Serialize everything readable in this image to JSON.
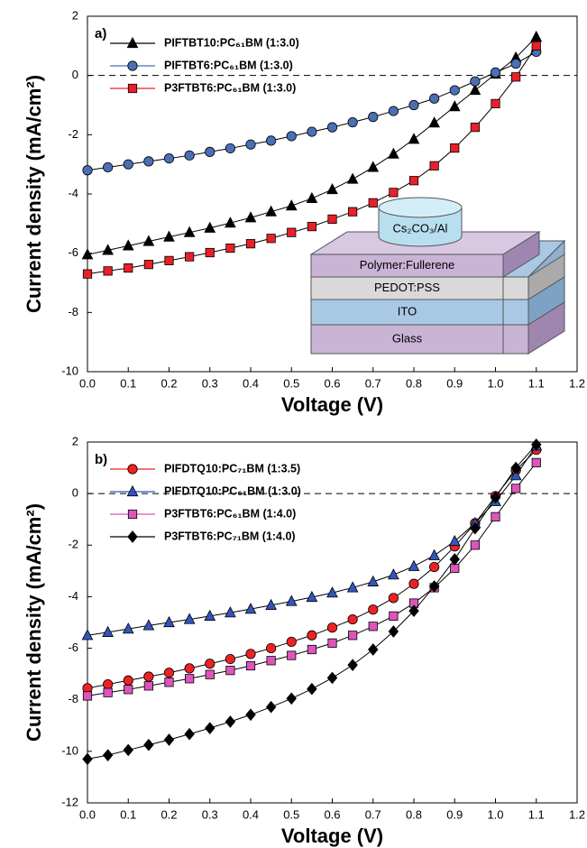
{
  "chart_data": [
    {
      "type": "scatter",
      "panel_label": "a)",
      "x_label": "Voltage (V)",
      "y_label": "Current density (mA/cm²)",
      "x": [
        0,
        0.05,
        0.1,
        0.15,
        0.2,
        0.25,
        0.3,
        0.35,
        0.4,
        0.45,
        0.5,
        0.55,
        0.6,
        0.65,
        0.7,
        0.75,
        0.8,
        0.85,
        0.9,
        0.95,
        1.0,
        1.05,
        1.1
      ],
      "series": [
        {
          "name": "PIFTBT10:PC₆₁BM (1:3.0)",
          "color": "#000000",
          "marker": "triangle",
          "values": [
            -6.05,
            -5.9,
            -5.75,
            -5.6,
            -5.45,
            -5.3,
            -5.15,
            -4.98,
            -4.8,
            -4.6,
            -4.4,
            -4.15,
            -3.85,
            -3.5,
            -3.1,
            -2.65,
            -2.15,
            -1.6,
            -1.05,
            -0.5,
            0.05,
            0.6,
            1.3
          ]
        },
        {
          "name": "PIFTBT6:PC₆₁BM (1:3.0)",
          "color": "#4a6fb5",
          "marker": "circle",
          "values": [
            -3.2,
            -3.1,
            -3.0,
            -2.9,
            -2.8,
            -2.7,
            -2.58,
            -2.46,
            -2.33,
            -2.2,
            -2.05,
            -1.9,
            -1.75,
            -1.58,
            -1.4,
            -1.2,
            -1.0,
            -0.78,
            -0.5,
            -0.2,
            0.1,
            0.4,
            0.8
          ]
        },
        {
          "name": "P3FTBT6:PC₆₁BM (1:3.0)",
          "color": "#e8202a",
          "marker": "square",
          "values": [
            -6.7,
            -6.6,
            -6.5,
            -6.38,
            -6.25,
            -6.12,
            -5.98,
            -5.83,
            -5.68,
            -5.5,
            -5.3,
            -5.1,
            -4.85,
            -4.6,
            -4.3,
            -3.95,
            -3.55,
            -3.05,
            -2.45,
            -1.75,
            -0.95,
            -0.05,
            1.0
          ]
        }
      ],
      "xlim": [
        0,
        1.2
      ],
      "xticks": [
        {
          "value": 0,
          "label": "0.0"
        },
        0.1,
        0.2,
        0.3,
        0.4,
        0.5,
        0.6,
        0.7,
        0.8,
        0.9,
        {
          "value": 1,
          "label": "1.0"
        },
        1.1,
        1.2
      ],
      "ylim": [
        -10,
        2
      ],
      "yticks": [
        -10,
        -8,
        -6,
        -4,
        -2,
        0,
        2
      ],
      "hline": 0,
      "legend": "upper left",
      "inset_top": "Cs₂CO₃/Al",
      "inset_layers": [
        "Polymer:Fullerene",
        "PEDOT:PSS",
        "ITO",
        "Glass"
      ]
    },
    {
      "type": "scatter",
      "panel_label": "b)",
      "x_label": "Voltage (V)",
      "y_label": "Current density (mA/cm²)",
      "x": [
        0,
        0.05,
        0.1,
        0.15,
        0.2,
        0.25,
        0.3,
        0.35,
        0.4,
        0.45,
        0.5,
        0.55,
        0.6,
        0.65,
        0.7,
        0.75,
        0.8,
        0.85,
        0.9,
        0.95,
        1.0,
        1.05,
        1.1
      ],
      "series": [
        {
          "name": "PIFDTQ10:PC₇₁BM (1:3.5)",
          "color": "#ee2222",
          "marker": "circle",
          "values": [
            -7.55,
            -7.4,
            -7.25,
            -7.1,
            -6.95,
            -6.78,
            -6.6,
            -6.42,
            -6.22,
            -6.0,
            -5.75,
            -5.5,
            -5.2,
            -4.88,
            -4.5,
            -4.05,
            -3.5,
            -2.85,
            -2.05,
            -1.15,
            -0.1,
            0.9,
            1.7
          ]
        },
        {
          "name": "PIFDTQ10:PC₆₁BM (1:3.0)",
          "color": "#3355bb",
          "marker": "triangle",
          "values": [
            -5.5,
            -5.38,
            -5.25,
            -5.12,
            -5.0,
            -4.88,
            -4.75,
            -4.62,
            -4.48,
            -4.33,
            -4.18,
            -4.02,
            -3.85,
            -3.65,
            -3.42,
            -3.15,
            -2.82,
            -2.4,
            -1.85,
            -1.15,
            -0.3,
            0.7,
            1.85
          ]
        },
        {
          "name": "P3FTBT6:PC₆₁BM (1:4.0)",
          "color": "#dd55bb",
          "marker": "square",
          "values": [
            -7.85,
            -7.72,
            -7.6,
            -7.46,
            -7.32,
            -7.18,
            -7.02,
            -6.86,
            -6.68,
            -6.48,
            -6.28,
            -6.05,
            -5.8,
            -5.5,
            -5.15,
            -4.75,
            -4.25,
            -3.65,
            -2.9,
            -2.0,
            -0.9,
            0.2,
            1.2
          ]
        },
        {
          "name": "P3FTBT6:PC₇₁BM (1:4.0)",
          "color": "#000000",
          "marker": "diamond",
          "values": [
            -10.3,
            -10.15,
            -9.95,
            -9.75,
            -9.55,
            -9.33,
            -9.1,
            -8.85,
            -8.58,
            -8.28,
            -7.95,
            -7.58,
            -7.15,
            -6.65,
            -6.05,
            -5.35,
            -4.55,
            -3.6,
            -2.55,
            -1.35,
            -0.15,
            1.0,
            1.9
          ]
        }
      ],
      "xlim": [
        0,
        1.2
      ],
      "xticks": [
        {
          "value": 0,
          "label": "0.0"
        },
        0.1,
        0.2,
        0.3,
        0.4,
        0.5,
        0.6,
        0.7,
        0.8,
        0.9,
        {
          "value": 1,
          "label": "1.0"
        },
        1.1,
        1.2
      ],
      "ylim": [
        -12,
        2
      ],
      "yticks": [
        -12,
        -10,
        -8,
        -6,
        -4,
        -2,
        0,
        2
      ],
      "hline": 0,
      "legend": "upper left"
    }
  ]
}
